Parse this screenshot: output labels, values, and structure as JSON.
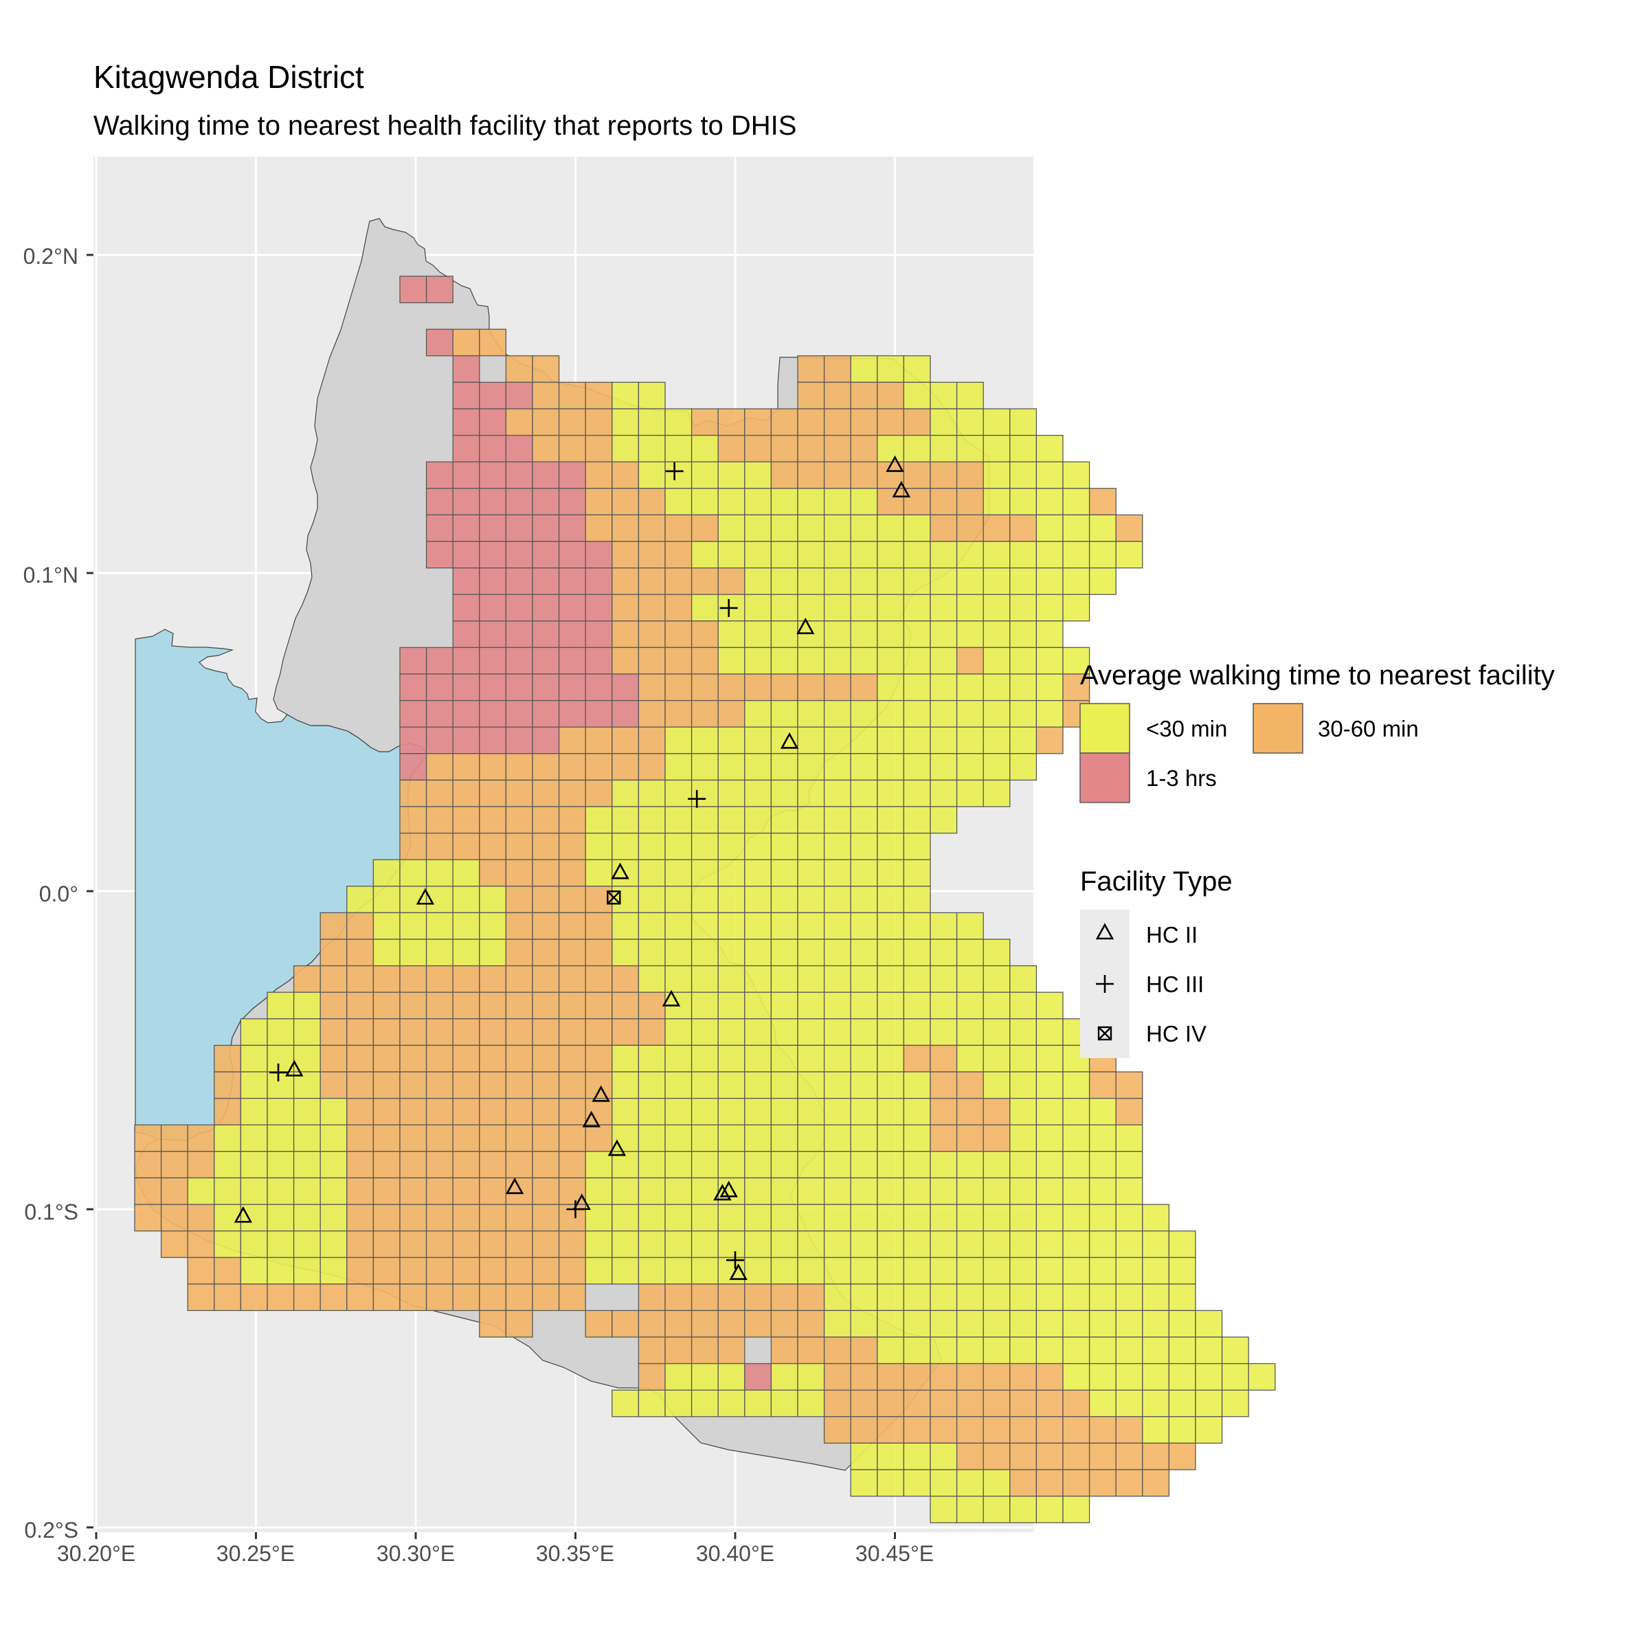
{
  "title": "Kitagwenda District",
  "subtitle": "Walking time to nearest health facility that reports to DHIS",
  "axes": {
    "x_ticks": [
      "30.20°E",
      "30.25°E",
      "30.30°E",
      "30.35°E",
      "30.40°E",
      "30.45°E"
    ],
    "y_ticks": [
      "0.2°N",
      "0.1°N",
      "0.0°",
      "0.1°S",
      "0.2°S"
    ],
    "x_tick_values": [
      30.2,
      30.25,
      30.3,
      30.35,
      30.4,
      30.45
    ],
    "y_tick_values": [
      0.2,
      0.1,
      0.0,
      -0.1,
      -0.2
    ],
    "xlim": [
      30.2,
      30.493
    ],
    "ylim": [
      -0.209,
      0.231
    ],
    "grid": true
  },
  "colors": {
    "panel_bg": "#ebebeb",
    "grid": "#ffffff",
    "water": "#add8e6",
    "land": "#d3d3d3",
    "lt30": "#eaf051",
    "30to60": "#f3b565",
    "1to3": "#e3878a"
  },
  "legend_fill": {
    "title": "Average walking time to nearest facility",
    "items": [
      {
        "key": "lt30",
        "label": "<30 min"
      },
      {
        "key": "30to60",
        "label": "30-60 min"
      },
      {
        "key": "1to3",
        "label": "1-3 hrs"
      }
    ]
  },
  "legend_shape": {
    "title": "Facility Type",
    "items": [
      {
        "key": "hc2",
        "label": "HC II",
        "icon": "triangle-icon"
      },
      {
        "key": "hc3",
        "label": "HC III",
        "icon": "plus-icon"
      },
      {
        "key": "hc4",
        "label": "HC IV",
        "icon": "boxed-x-icon"
      }
    ]
  },
  "chart_data": {
    "type": "map",
    "grid_cell_deg": {
      "dx": 0.0083,
      "dy": 0.0083
    },
    "grid_origin": {
      "lon": 30.214,
      "lat": -0.19
    },
    "cells_legend": "rows listed from north (top) to south; '.'=none, Y=<30 min, O=30-60 min, R=1-3 hrs",
    "cells": [
      "..........RR..........................",
      "..................................................",
      "...........ROO........................",
      "............R.OO.........OOYYY........",
      "............RRROOOYY.....OOOOYYY......",
      "............RROOOOYYYOOOOOOOOOYYYY....",
      "............RRROOOYYYYOOOOOOYYYYYYY...",
      "...........RRRRRROOYYYYYOOOOOOOOYYYY..",
      "...........RRRRRROOOYYYYYYYYOOOOYYYYO.",
      "...........RRRRRROOOOOYYYYYYYYOOOOYYYO",
      "...........RRRRRRROOOYYYYYYYYYYYYYYYYY",
      "............RRRRRROOOOOYYYYYYYYYYYYYY.",
      "............RRRRRROOOYYYYYYYYYYYYYYY..",
      "............RRRRRROOOOYYYYYYYYYYYYY...",
      "..........RRRRRRRROOOOYYYYYYYYYOYYYY..",
      "..........RRRRRRRRROOOOOOOOOYYYYYYYO..",
      "..........RRRRRRRRROOOOYYYYYYYYYYYYO..",
      "..........RRRRRROOOOYYYYYYYYYYYYYYO...",
      "..........ROOOOOOOOOYYYYYYYYYYYYYY....",
      "..........OOOOOOOOYYYYYYYYYYYYYYY.....",
      "..........OOOOOOOYYYYYYYYYYYYYY.......",
      "..........OOOOOOOYYYYYYYYYYYYY........",
      ".........YYYYOOOOYYYYYYYYYYYYY........",
      "........YYYYYYOOOOYYYYYYYYYYYY........",
      ".......OOYYYYYOOOOYYYYYYYYYYYYYY......",
      ".......OOYYYYYOOOOYYYYYYYYYYYYYYY.....",
      "......OOOOOOOOOOOOOYYYYYYYYYYYYYYY....",
      ".....YYOOOOOOOOOOOOOYYYYYYYYYYYYYYY...",
      "....YYYOOOOOOOOOOOOOYYYYYYYYYYYYYYYY..",
      "...OYYYOOOOOOOOOOOYYYYYYYYYYYOOYYYYYO.",
      "...OYYYOOOOOOOOOOOYYYYYYYYYYYYOOYYYYOO",
      "...OYYYYOOOOOOOOOOYYYYYYYYYYYYOOOYYYYO",
      "OOOYYYYYOOOOOOOOOOYYYYYYYYYYYYOOOYYYYY",
      "OOOYYYYYOOOOOOOOOYYYYYYYYYYYYYYYYYYYYY",
      "OOYYYYYYOOOOOOOOOYYYYYYYYYYYYYYYYYYYYY",
      "OOOYYYYYOOOOOOOOOYYYYYYYYYYYYYYYYYYYYYY",
      ".OOYYYYYOOOOOOOOOYYYYYYYYYYYYYYYYYYYYYYY",
      "..OOYYYYOOOOOOOOOYYYYYYYYYYYYYYYYYYYYYYY",
      "..OOOOOOOOOOOOOOO..OOOOOOOYYYYYYYYYYYYYY",
      ".............OO..OOOOOOOOOYYYYYYYYYYYYYYY",
      "...................OOOO.OOOOYYYYYYYYYYYYYY",
      "...................OYYYRYYOOOOOOOOOYYYYYYYY",
      "..................YYYYYYYYOOOOOOOOOOYYYYYY",
      "..........................OOOOOOOOOOOOYYY",
      "...........................YYYYOOOOOOOOO",
      "...........................YYYYYYOOOOOO",
      "..............................YYYYYY"
    ],
    "facilities": [
      {
        "type": "HC II",
        "lon": 30.45,
        "lat": 0.134
      },
      {
        "type": "HC II",
        "lon": 30.452,
        "lat": 0.126
      },
      {
        "type": "HC III",
        "lon": 30.381,
        "lat": 0.132
      },
      {
        "type": "HC III",
        "lon": 30.398,
        "lat": 0.089
      },
      {
        "type": "HC II",
        "lon": 30.422,
        "lat": 0.083
      },
      {
        "type": "HC II",
        "lon": 30.417,
        "lat": 0.047
      },
      {
        "type": "HC III",
        "lon": 30.388,
        "lat": 0.029
      },
      {
        "type": "HC II",
        "lon": 30.364,
        "lat": 0.006
      },
      {
        "type": "HC IV",
        "lon": 30.362,
        "lat": -0.002
      },
      {
        "type": "HC II",
        "lon": 30.303,
        "lat": -0.002
      },
      {
        "type": "HC II",
        "lon": 30.38,
        "lat": -0.034
      },
      {
        "type": "HC III",
        "lon": 30.257,
        "lat": -0.057
      },
      {
        "type": "HC II",
        "lon": 30.262,
        "lat": -0.056
      },
      {
        "type": "HC II",
        "lon": 30.358,
        "lat": -0.064
      },
      {
        "type": "HC II",
        "lon": 30.355,
        "lat": -0.072
      },
      {
        "type": "HC II",
        "lon": 30.363,
        "lat": -0.081
      },
      {
        "type": "HC II",
        "lon": 30.331,
        "lat": -0.093
      },
      {
        "type": "HC III",
        "lon": 30.35,
        "lat": -0.1
      },
      {
        "type": "HC II",
        "lon": 30.352,
        "lat": -0.098
      },
      {
        "type": "HC II",
        "lon": 30.396,
        "lat": -0.095
      },
      {
        "type": "HC II",
        "lon": 30.398,
        "lat": -0.094
      },
      {
        "type": "HC II",
        "lon": 30.246,
        "lat": -0.102
      },
      {
        "type": "HC III",
        "lon": 30.4,
        "lat": -0.116
      },
      {
        "type": "HC II",
        "lon": 30.401,
        "lat": -0.12
      }
    ]
  }
}
